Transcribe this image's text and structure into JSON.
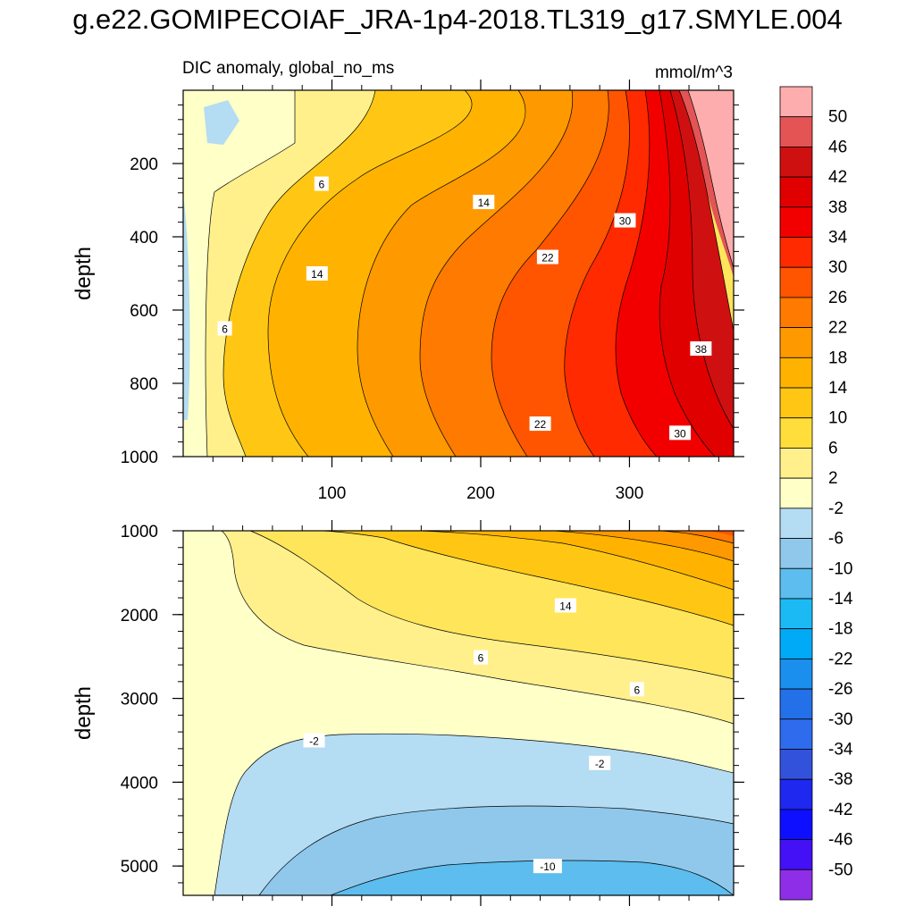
{
  "title": "g.e22.GOMIPECOIAF_JRA-1p4-2018.TL319_g17.SMYLE.004",
  "chart_data": {
    "type": "contour",
    "variable_label": "DIC anomaly, global_no_ms",
    "units": "mmol/m^3",
    "x_range": [
      0,
      370
    ],
    "x_ticks": [
      100,
      200,
      300
    ],
    "x_tick_labels": [
      "100",
      "200",
      "300"
    ],
    "colorbar": {
      "labels": [
        "50",
        "46",
        "42",
        "38",
        "34",
        "30",
        "26",
        "22",
        "18",
        "14",
        "10",
        "6",
        "2",
        "-2",
        "-6",
        "-10",
        "-14",
        "-18",
        "-22",
        "-26",
        "-30",
        "-34",
        "-38",
        "-42",
        "-46",
        "-50"
      ],
      "colors": [
        "#fdadad",
        "#e45454",
        "#cf1010",
        "#e00000",
        "#f20000",
        "#ff2a00",
        "#ff5500",
        "#ff7a00",
        "#ff9900",
        "#ffb300",
        "#ffc714",
        "#ffde3c",
        "#fff08c",
        "#ffffc8",
        "#b4dcf2",
        "#8fc8eb",
        "#5cbdee",
        "#1cbaf5",
        "#00aaf7",
        "#1b8fee",
        "#2470e8",
        "#2e6ced",
        "#3352dc",
        "#1e28ee",
        "#0f0fff",
        "#4410f5",
        "#8e2ee6"
      ]
    },
    "panels": [
      {
        "name": "upper",
        "ylabel": "depth",
        "y_range": [
          0,
          1000
        ],
        "y_reversed": true,
        "y_ticks": [
          200,
          400,
          600,
          800,
          1000
        ],
        "y_tick_labels": [
          "200",
          "400",
          "600",
          "800",
          "1000"
        ],
        "contour_labels": [
          {
            "text": "6",
            "x": 93,
            "y": 255
          },
          {
            "text": "14",
            "x": 202,
            "y": 305
          },
          {
            "text": "30",
            "x": 297,
            "y": 355
          },
          {
            "text": "14",
            "x": 90,
            "y": 500
          },
          {
            "text": "22",
            "x": 245,
            "y": 455
          },
          {
            "text": "6",
            "x": 28,
            "y": 650
          },
          {
            "text": "38",
            "x": 348,
            "y": 705
          },
          {
            "text": "22",
            "x": 240,
            "y": 910
          },
          {
            "text": "30",
            "x": 334,
            "y": 935
          }
        ]
      },
      {
        "name": "lower",
        "ylabel": "depth",
        "y_range": [
          1000,
          5350
        ],
        "y_reversed": true,
        "y_ticks": [
          1000,
          2000,
          3000,
          4000,
          5000
        ],
        "y_tick_labels": [
          "1000",
          "2000",
          "3000",
          "4000",
          "5000"
        ],
        "contour_labels": [
          {
            "text": "14",
            "x": 257,
            "y": 1890
          },
          {
            "text": "6",
            "x": 200,
            "y": 2510
          },
          {
            "text": "6",
            "x": 305,
            "y": 2890
          },
          {
            "text": "-2",
            "x": 88,
            "y": 3500
          },
          {
            "text": "-2",
            "x": 280,
            "y": 3770
          },
          {
            "text": "-10",
            "x": 245,
            "y": 5000
          }
        ]
      }
    ]
  }
}
